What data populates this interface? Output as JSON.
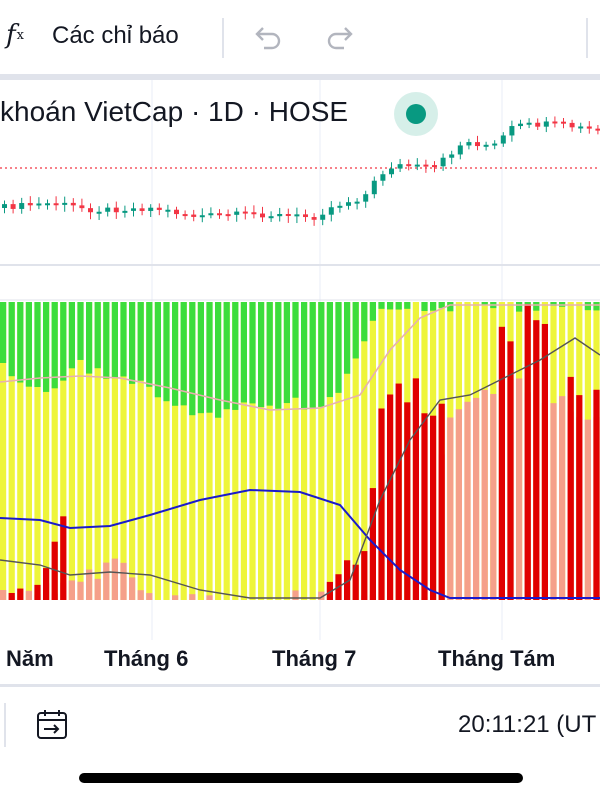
{
  "toolbar": {
    "fx_label": "f",
    "fx_sub": "x",
    "indicators_label": "Các chỉ báo",
    "undo_icon": "undo-icon",
    "redo_icon": "redo-icon"
  },
  "legend": {
    "symbol_text": "khoán VietCap · 1D · HOSE",
    "status_color": "#089981"
  },
  "x_axis": {
    "labels": [
      "Năm",
      "Tháng 6",
      "Tháng 7",
      "Tháng Tám"
    ]
  },
  "bottom": {
    "date_range_icon": "date-range-icon",
    "clock": "20:11:21 (UT"
  },
  "colors": {
    "up": "#089981",
    "down": "#f23645",
    "green_zone": "#3cdd3c",
    "yellow_zone": "#eef53a",
    "red_bar": "#e00000",
    "salmon_bar": "#f5a08a",
    "blue_line": "#1a1acc",
    "dark_line": "#555555"
  }
}
